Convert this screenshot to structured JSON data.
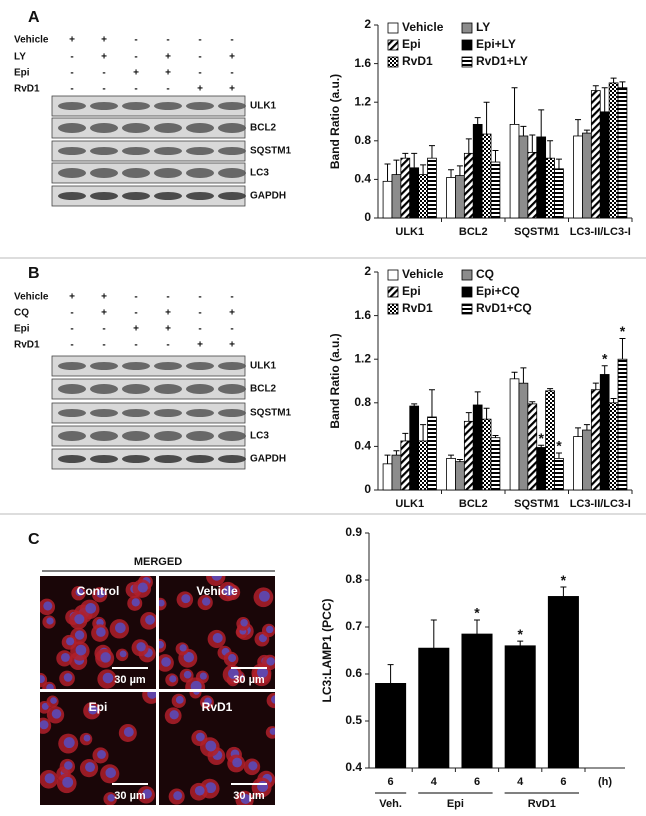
{
  "panels": [
    {
      "label": "A",
      "blot": {
        "conditions": [
          {
            "name": "Vehicle",
            "signs": [
              "+",
              "+",
              "-",
              "-",
              "-",
              "-"
            ]
          },
          {
            "name": "LY",
            "signs": [
              "-",
              "+",
              "-",
              "+",
              "-",
              "+"
            ]
          },
          {
            "name": "Epi",
            "signs": [
              "-",
              "-",
              "+",
              "+",
              "-",
              "-"
            ]
          },
          {
            "name": "RvD1",
            "signs": [
              "-",
              "-",
              "-",
              "-",
              "+",
              "+"
            ]
          }
        ],
        "bands": [
          "ULK1",
          "BCL2",
          "SQSTM1",
          "LC3",
          "GAPDH"
        ]
      }
    },
    {
      "label": "B",
      "blot": {
        "conditions": [
          {
            "name": "Vehicle",
            "signs": [
              "+",
              "+",
              "-",
              "-",
              "-",
              "-"
            ]
          },
          {
            "name": "CQ",
            "signs": [
              "-",
              "+",
              "-",
              "+",
              "-",
              "+"
            ]
          },
          {
            "name": "Epi",
            "signs": [
              "-",
              "-",
              "+",
              "+",
              "-",
              "-"
            ]
          },
          {
            "name": "RvD1",
            "signs": [
              "-",
              "-",
              "-",
              "-",
              "+",
              "+"
            ]
          }
        ],
        "bands": [
          "ULK1",
          "BCL2",
          "SQSTM1",
          "LC3",
          "GAPDH"
        ]
      }
    },
    {
      "label": "C",
      "images": {
        "title": "MERGED",
        "tiles": [
          "Control",
          "Vehicle",
          "Epi",
          "RvD1"
        ],
        "scale_bar": "30 µm"
      }
    }
  ],
  "chart_data": [
    {
      "type": "bar",
      "ylabel": "Band Ratio (a.u.)",
      "categories": [
        "ULK1",
        "BCL2",
        "SQSTM1",
        "LC3-II/LC3-I"
      ],
      "ylim": [
        0,
        2
      ],
      "yticks": [
        0,
        0.4,
        0.8,
        1.2,
        1.6,
        2
      ],
      "series": [
        {
          "name": "Vehicle",
          "color": "#ffffff",
          "pattern": "solid",
          "values": [
            0.38,
            0.42,
            0.97,
            0.85
          ],
          "errors": [
            0.18,
            0.08,
            0.38,
            0.17
          ]
        },
        {
          "name": "LY",
          "color": "#8c8c8c",
          "pattern": "solid",
          "values": [
            0.45,
            0.44,
            0.85,
            0.88
          ],
          "errors": [
            0.15,
            0.1,
            0.1,
            0.03
          ]
        },
        {
          "name": "Epi",
          "color": "#000000",
          "pattern": "diagonal",
          "values": [
            0.62,
            0.67,
            0.68,
            1.32
          ],
          "errors": [
            0.05,
            0.15,
            0.18,
            0.05
          ]
        },
        {
          "name": "Epi+LY",
          "color": "#000000",
          "pattern": "solid",
          "values": [
            0.52,
            0.97,
            0.84,
            1.1
          ],
          "errors": [
            0.15,
            0.07,
            0.28,
            0.25
          ]
        },
        {
          "name": "RvD1",
          "color": "#000000",
          "pattern": "checker",
          "values": [
            0.45,
            0.87,
            0.62,
            1.4
          ],
          "errors": [
            0.1,
            0.33,
            0.18,
            0.05
          ]
        },
        {
          "name": "RvD1+LY",
          "color": "#000000",
          "pattern": "horizontal",
          "values": [
            0.62,
            0.58,
            0.51,
            1.35
          ],
          "errors": [
            0.13,
            0.12,
            0.1,
            0.06
          ]
        }
      ]
    },
    {
      "type": "bar",
      "ylabel": "Band Ratio (a.u.)",
      "categories": [
        "ULK1",
        "BCL2",
        "SQSTM1",
        "LC3-II/LC3-I"
      ],
      "ylim": [
        0,
        2
      ],
      "yticks": [
        0,
        0.4,
        0.8,
        1.2,
        1.6,
        2
      ],
      "series": [
        {
          "name": "Vehicle",
          "color": "#ffffff",
          "pattern": "solid",
          "values": [
            0.24,
            0.29,
            1.02,
            0.49
          ],
          "errors": [
            0.08,
            0.03,
            0.06,
            0.08
          ]
        },
        {
          "name": "CQ",
          "color": "#8c8c8c",
          "pattern": "solid",
          "values": [
            0.32,
            0.26,
            0.98,
            0.55
          ],
          "errors": [
            0.04,
            0.02,
            0.14,
            0.05
          ]
        },
        {
          "name": "Epi",
          "color": "#000000",
          "pattern": "diagonal",
          "values": [
            0.45,
            0.63,
            0.79,
            0.92
          ],
          "errors": [
            0.07,
            0.08,
            0.02,
            0.06
          ]
        },
        {
          "name": "Epi+CQ",
          "color": "#000000",
          "pattern": "solid",
          "values": [
            0.77,
            0.78,
            0.39,
            1.06
          ],
          "errors": [
            0.02,
            0.12,
            0.02,
            0.08
          ],
          "significance": [
            null,
            null,
            "*",
            "*"
          ]
        },
        {
          "name": "RvD1",
          "color": "#000000",
          "pattern": "checker",
          "values": [
            0.45,
            0.65,
            0.91,
            0.8
          ],
          "errors": [
            0.15,
            0.1,
            0.02,
            0.04
          ]
        },
        {
          "name": "RvD1+CQ",
          "color": "#000000",
          "pattern": "horizontal",
          "values": [
            0.67,
            0.48,
            0.29,
            1.2
          ],
          "errors": [
            0.25,
            0.02,
            0.05,
            0.19
          ],
          "significance": [
            null,
            null,
            "*",
            "*"
          ]
        }
      ]
    },
    {
      "type": "bar",
      "ylabel": "LC3:LAMP1 (PCC)",
      "xlabel": "(h)",
      "categories": [
        "6",
        "4",
        "6",
        "4",
        "6"
      ],
      "group_labels": [
        "Veh.",
        "Epi",
        "RvD1"
      ],
      "group_sizes": [
        1,
        2,
        2
      ],
      "ylim": [
        0.4,
        0.9
      ],
      "yticks": [
        0.4,
        0.5,
        0.6,
        0.7,
        0.8,
        0.9
      ],
      "color": "#000000",
      "values": [
        0.58,
        0.655,
        0.685,
        0.66,
        0.765
      ],
      "errors": [
        0.04,
        0.06,
        0.03,
        0.01,
        0.02
      ],
      "significance": [
        null,
        null,
        "*",
        "*",
        "*"
      ]
    }
  ]
}
